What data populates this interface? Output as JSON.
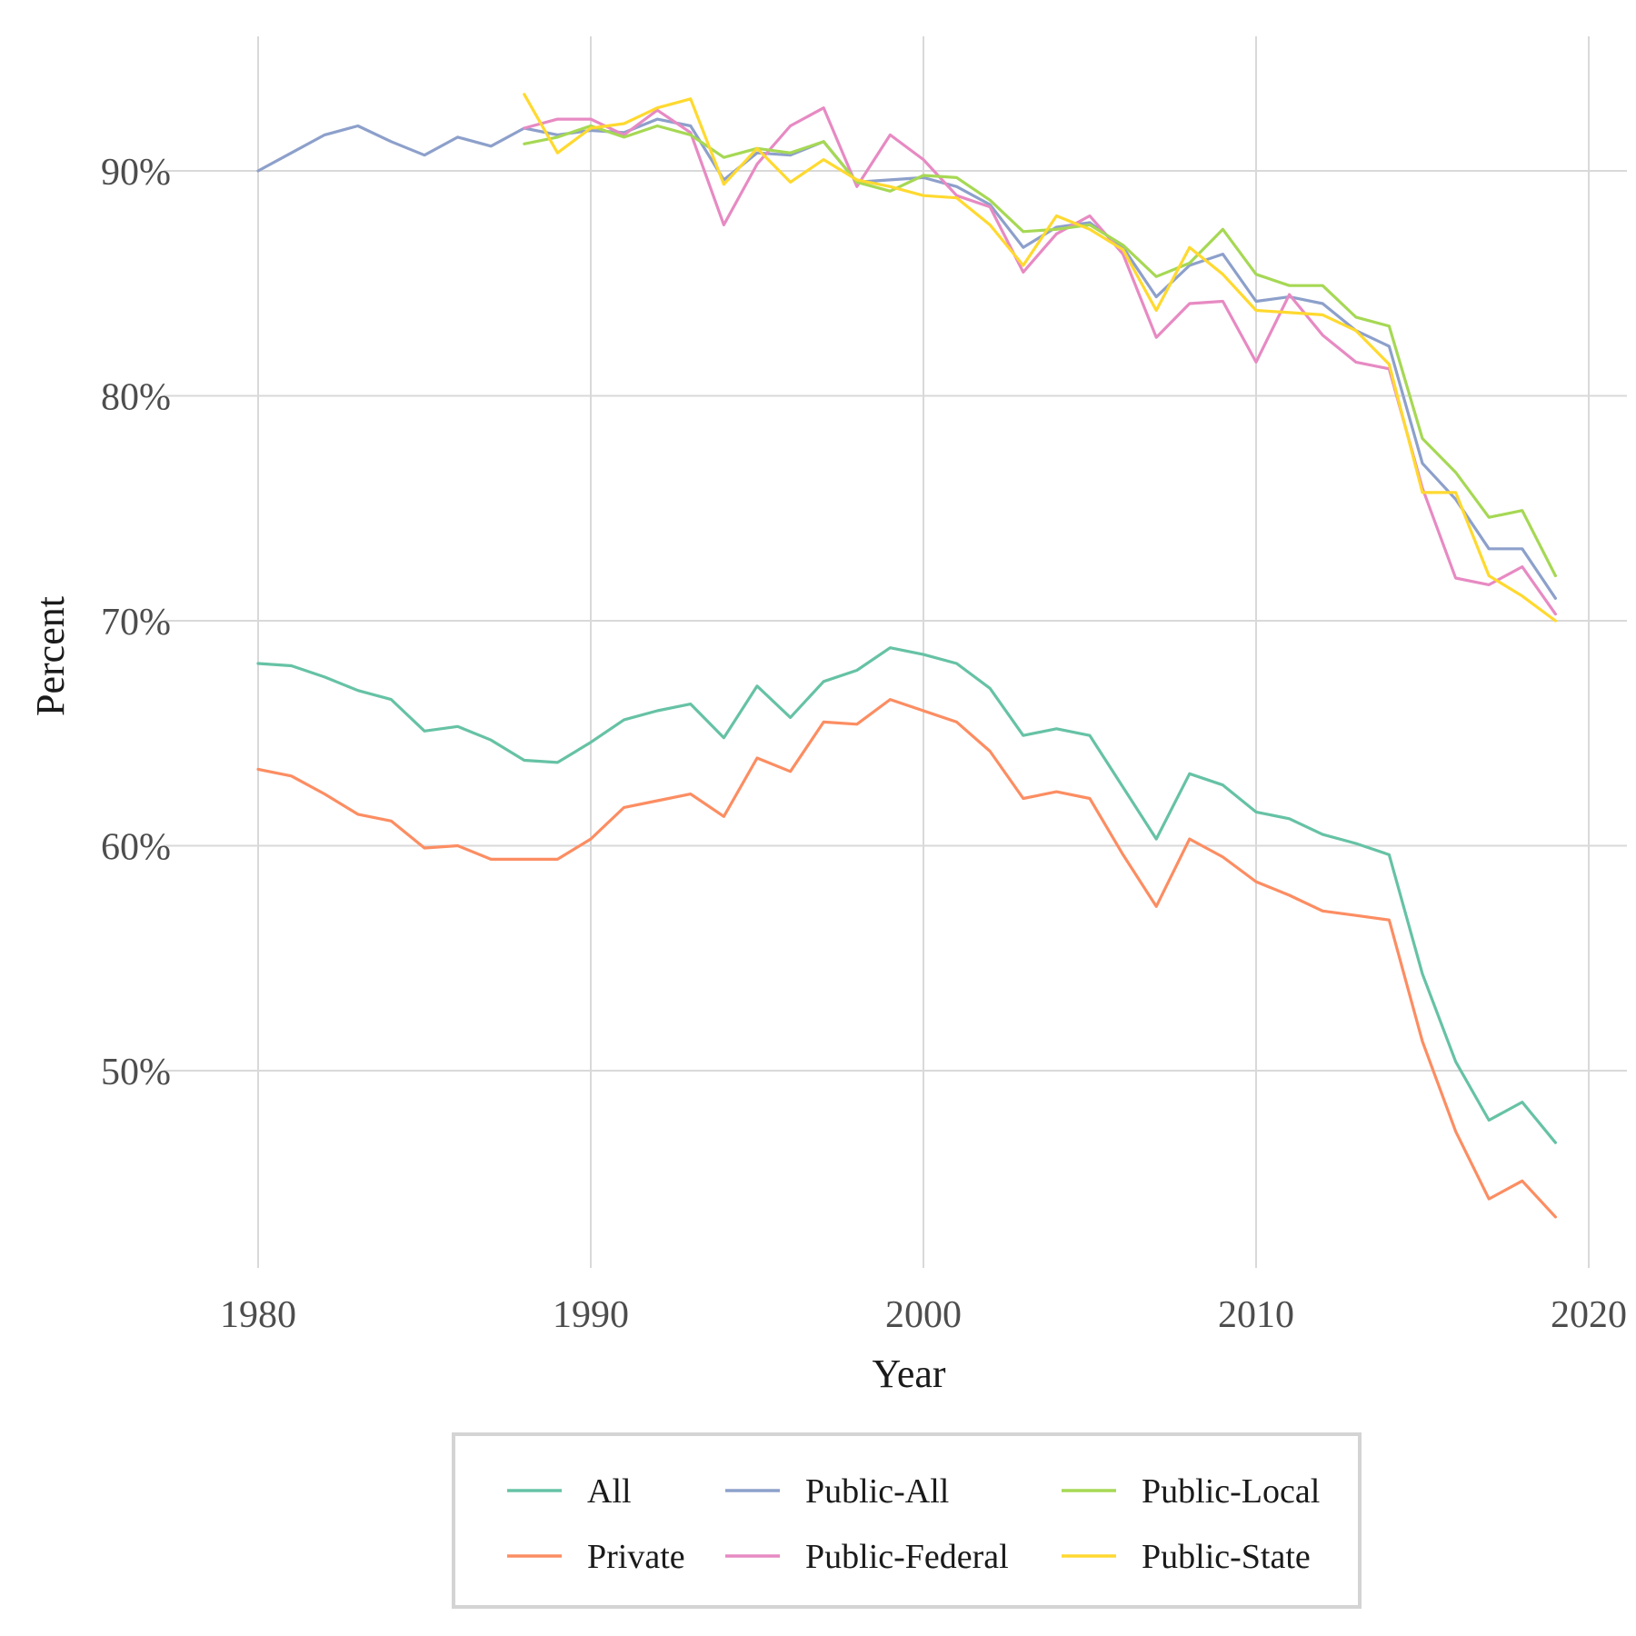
{
  "chart_data": {
    "type": "line",
    "title": "",
    "xlabel": "Year",
    "ylabel": "Percent",
    "xlim": [
      1978.5,
      2021.3
    ],
    "ylim": [
      41.5,
      96.0
    ],
    "x_ticks": [
      1980,
      1990,
      2000,
      2010,
      2020
    ],
    "x_tick_labels": [
      "1980",
      "1990",
      "2000",
      "2010",
      "2020"
    ],
    "y_ticks": [
      50,
      60,
      70,
      80,
      90
    ],
    "y_tick_labels": [
      "50%",
      "60%",
      "70%",
      "80%",
      "90%"
    ],
    "grid": true,
    "legend_position": "bottom",
    "series": [
      {
        "name": "All",
        "color": "#66c2a5",
        "x": [
          1980,
          1981,
          1982,
          1983,
          1984,
          1985,
          1986,
          1987,
          1988,
          1989,
          1990,
          1991,
          1992,
          1993,
          1994,
          1995,
          1996,
          1997,
          1998,
          1999,
          2000,
          2001,
          2002,
          2003,
          2004,
          2005,
          2006,
          2007,
          2008,
          2009,
          2010,
          2011,
          2012,
          2013,
          2014,
          2015,
          2016,
          2017,
          2018,
          2019
        ],
        "values": [
          68.1,
          68.0,
          67.5,
          66.9,
          66.5,
          65.1,
          65.3,
          64.7,
          63.8,
          63.7,
          64.6,
          65.6,
          66.0,
          66.3,
          64.8,
          67.1,
          65.7,
          67.3,
          67.8,
          68.8,
          68.5,
          68.1,
          67.0,
          64.9,
          65.2,
          64.9,
          62.6,
          60.3,
          63.2,
          62.7,
          61.5,
          61.2,
          60.5,
          60.1,
          59.6,
          54.3,
          50.4,
          47.8,
          48.6,
          46.8
        ]
      },
      {
        "name": "Private",
        "color": "#fc8d62",
        "x": [
          1980,
          1981,
          1982,
          1983,
          1984,
          1985,
          1986,
          1987,
          1988,
          1989,
          1990,
          1991,
          1992,
          1993,
          1994,
          1995,
          1996,
          1997,
          1998,
          1999,
          2000,
          2001,
          2002,
          2003,
          2004,
          2005,
          2006,
          2007,
          2008,
          2009,
          2010,
          2011,
          2012,
          2013,
          2014,
          2015,
          2016,
          2017,
          2018,
          2019
        ],
        "values": [
          63.4,
          63.1,
          62.3,
          61.4,
          61.1,
          59.9,
          60.0,
          59.4,
          59.4,
          59.4,
          60.3,
          61.7,
          62.0,
          62.3,
          61.3,
          63.9,
          63.3,
          65.5,
          65.4,
          66.5,
          66.0,
          65.5,
          64.2,
          62.1,
          62.4,
          62.1,
          59.6,
          57.3,
          60.3,
          59.5,
          58.4,
          57.8,
          57.1,
          56.9,
          56.7,
          51.3,
          47.3,
          44.3,
          45.1,
          43.5
        ]
      },
      {
        "name": "Public-All",
        "color": "#8da0cb",
        "x": [
          1980,
          1981,
          1982,
          1983,
          1984,
          1985,
          1986,
          1987,
          1988,
          1989,
          1990,
          1991,
          1992,
          1993,
          1994,
          1995,
          1996,
          1997,
          1998,
          1999,
          2000,
          2001,
          2002,
          2003,
          2004,
          2005,
          2006,
          2007,
          2008,
          2009,
          2010,
          2011,
          2012,
          2013,
          2014,
          2015,
          2016,
          2017,
          2018,
          2019
        ],
        "values": [
          90.0,
          90.8,
          91.6,
          92.0,
          91.3,
          90.7,
          91.5,
          91.1,
          91.9,
          91.6,
          91.8,
          91.7,
          92.3,
          92.0,
          89.6,
          90.8,
          90.7,
          91.3,
          89.5,
          89.6,
          89.7,
          89.3,
          88.5,
          86.6,
          87.5,
          87.7,
          86.6,
          84.4,
          85.8,
          86.3,
          84.2,
          84.4,
          84.1,
          82.9,
          82.2,
          77.0,
          75.4,
          73.2,
          73.2,
          71.0
        ]
      },
      {
        "name": "Public-Federal",
        "color": "#e78ac3",
        "x": [
          1988,
          1989,
          1990,
          1991,
          1992,
          1993,
          1994,
          1995,
          1996,
          1997,
          1998,
          1999,
          2000,
          2001,
          2002,
          2003,
          2004,
          2005,
          2006,
          2007,
          2008,
          2009,
          2010,
          2011,
          2012,
          2013,
          2014,
          2015,
          2016,
          2017,
          2018,
          2019
        ],
        "values": [
          91.9,
          92.3,
          92.3,
          91.6,
          92.7,
          91.7,
          87.6,
          90.3,
          92.0,
          92.8,
          89.3,
          91.6,
          90.5,
          88.9,
          88.4,
          85.5,
          87.2,
          88.0,
          86.3,
          82.6,
          84.1,
          84.2,
          81.5,
          84.5,
          82.7,
          81.5,
          81.2,
          75.9,
          71.9,
          71.6,
          72.4,
          70.3
        ]
      },
      {
        "name": "Public-Local",
        "color": "#a6d854",
        "x": [
          1988,
          1989,
          1990,
          1991,
          1992,
          1993,
          1994,
          1995,
          1996,
          1997,
          1998,
          1999,
          2000,
          2001,
          2002,
          2003,
          2004,
          2005,
          2006,
          2007,
          2008,
          2009,
          2010,
          2011,
          2012,
          2013,
          2014,
          2015,
          2016,
          2017,
          2018,
          2019
        ],
        "values": [
          91.2,
          91.5,
          92.0,
          91.5,
          92.0,
          91.6,
          90.6,
          91.0,
          90.8,
          91.3,
          89.5,
          89.1,
          89.8,
          89.7,
          88.7,
          87.3,
          87.4,
          87.6,
          86.7,
          85.3,
          85.9,
          87.4,
          85.4,
          84.9,
          84.9,
          83.5,
          83.1,
          78.1,
          76.6,
          74.6,
          74.9,
          72.0
        ]
      },
      {
        "name": "Public-State",
        "color": "#ffd92f",
        "x": [
          1988,
          1989,
          1990,
          1991,
          1992,
          1993,
          1994,
          1995,
          1996,
          1997,
          1998,
          1999,
          2000,
          2001,
          2002,
          2003,
          2004,
          2005,
          2006,
          2007,
          2008,
          2009,
          2010,
          2011,
          2012,
          2013,
          2014,
          2015,
          2016,
          2017,
          2018,
          2019
        ],
        "values": [
          93.4,
          90.8,
          91.9,
          92.1,
          92.8,
          93.2,
          89.4,
          91.0,
          89.5,
          90.5,
          89.6,
          89.3,
          88.9,
          88.8,
          87.6,
          85.8,
          88.0,
          87.4,
          86.5,
          83.8,
          86.6,
          85.4,
          83.8,
          83.7,
          83.6,
          82.9,
          81.4,
          75.7,
          75.7,
          72.0,
          71.1,
          70.0
        ]
      }
    ]
  }
}
